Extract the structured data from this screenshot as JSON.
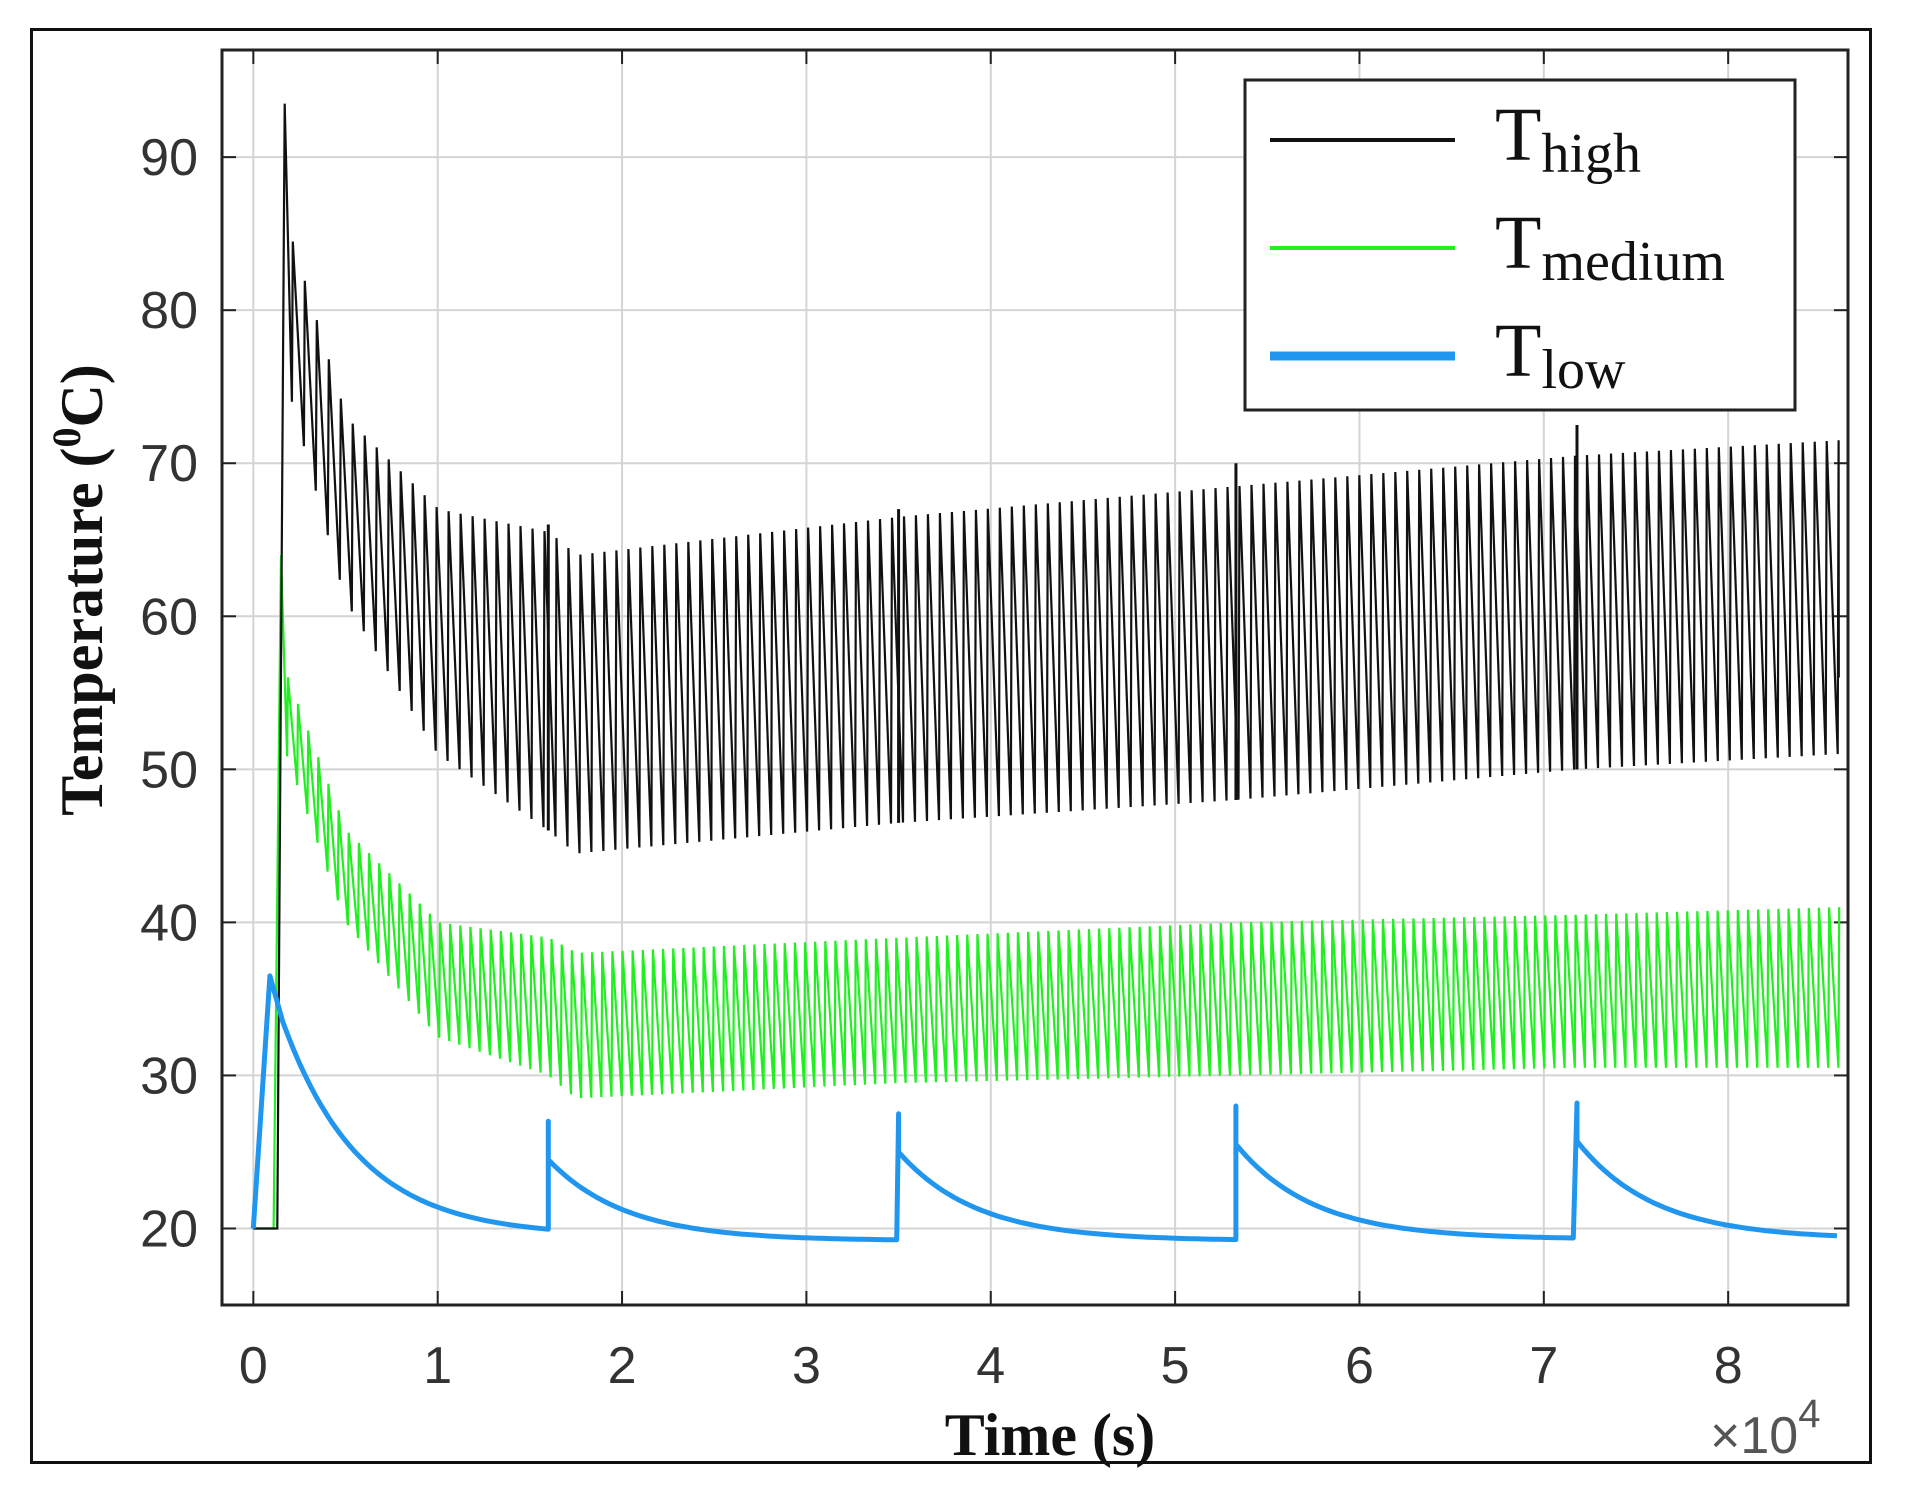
{
  "chart_data": {
    "type": "line",
    "xlabel": "Time (s)",
    "ylabel": "Temperature (",
    "ylabel_sup": "0",
    "ylabel_unit": "C)",
    "x_multiplier": "×10",
    "x_multiplier_exp": "4",
    "xlim": [
      -0.17,
      8.65
    ],
    "ylim": [
      15,
      97
    ],
    "xticks": [
      0,
      1,
      2,
      3,
      4,
      5,
      6,
      7,
      8
    ],
    "xtick_labels": [
      "0",
      "1",
      "2",
      "3",
      "4",
      "5",
      "6",
      "7",
      "8"
    ],
    "yticks": [
      20,
      30,
      40,
      50,
      60,
      70,
      80,
      90
    ],
    "ytick_labels": [
      "20",
      "30",
      "40",
      "50",
      "60",
      "70",
      "80",
      "90"
    ],
    "grid": true,
    "legend_position": "top-right",
    "reset_times": [
      0,
      1.6,
      3.5,
      5.33,
      7.18
    ],
    "x_end": 8.6,
    "series": [
      {
        "name": "Thigh",
        "label_main": "T",
        "label_sub": "high",
        "color": "#111111",
        "peak_first": 93.5,
        "keypoints": [
          {
            "t": 0.12,
            "max": 88,
            "min": 78
          },
          {
            "t": 0.5,
            "max": 73,
            "min": 61
          },
          {
            "t": 1.0,
            "max": 67,
            "min": 51
          },
          {
            "t": 1.6,
            "max": 65.5,
            "min": 46
          },
          {
            "t": 1.75,
            "max": 64,
            "min": 44.5
          },
          {
            "t": 3.5,
            "max": 66.5,
            "min": 46.5
          },
          {
            "t": 5.33,
            "max": 68.5,
            "min": 48
          },
          {
            "t": 7.18,
            "max": 70.5,
            "min": 50
          },
          {
            "t": 8.6,
            "max": 71.5,
            "min": 51
          }
        ],
        "reset_peaks": [
          66,
          67,
          70,
          72.5
        ]
      },
      {
        "name": "Tmedium",
        "label_main": "T",
        "label_sub": "medium",
        "color": "#22ee22",
        "peak_first": 64,
        "keypoints": [
          {
            "t": 0.12,
            "max": 58,
            "min": 53
          },
          {
            "t": 0.5,
            "max": 46,
            "min": 40
          },
          {
            "t": 1.0,
            "max": 40,
            "min": 32.5
          },
          {
            "t": 1.6,
            "max": 39,
            "min": 30
          },
          {
            "t": 1.75,
            "max": 38,
            "min": 28.5
          },
          {
            "t": 3.5,
            "max": 39,
            "min": 29.5
          },
          {
            "t": 5.33,
            "max": 40,
            "min": 30
          },
          {
            "t": 7.18,
            "max": 40.5,
            "min": 30.5
          },
          {
            "t": 8.6,
            "max": 41,
            "min": 30.5
          }
        ]
      },
      {
        "name": "Tlow",
        "label_main": "T",
        "label_sub": "low",
        "color": "#2196ee",
        "start": 20,
        "peak_first": 36.5,
        "peak_first_time": 0.09,
        "reset_peaks": [
          27,
          27.5,
          28,
          28.2
        ],
        "baseline": [
          19.5,
          19.2,
          19.2,
          19.3,
          19.3
        ]
      }
    ]
  }
}
